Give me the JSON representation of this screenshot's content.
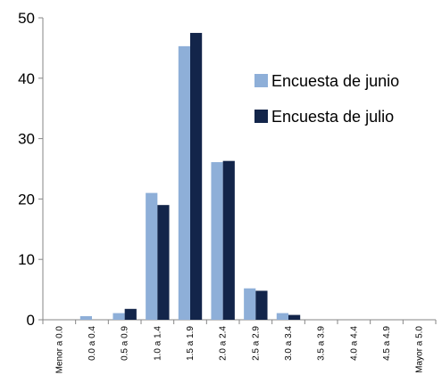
{
  "chart_data": {
    "type": "bar",
    "categories": [
      "Menor a 0.0",
      "0.0 a 0.4",
      "0.5 a 0.9",
      "1.0 a 1.4",
      "1.5 a 1.9",
      "2.0 a 2.4",
      "2.5 a 2.9",
      "3.0 a 3.4",
      "3.5 a 3.9",
      "4.0 a 4.4",
      "4.5 a 4.9",
      "Mayor a 5.0"
    ],
    "series": [
      {
        "name": "Encuesta de junio",
        "color": "#8EAFD8",
        "values": [
          0,
          0.6,
          1.1,
          21,
          45.3,
          26.1,
          5.2,
          1.1,
          0,
          0,
          0,
          0
        ]
      },
      {
        "name": "Encuesta de julio",
        "color": "#13254A",
        "values": [
          0,
          0,
          1.8,
          19,
          47.5,
          26.3,
          4.8,
          0.8,
          0,
          0,
          0,
          0
        ]
      }
    ],
    "title": "",
    "xlabel": "",
    "ylabel": "",
    "ylim": [
      0,
      50
    ],
    "yticks": [
      0,
      10,
      20,
      30,
      40,
      50
    ],
    "grid": false,
    "legend_position": "right"
  }
}
